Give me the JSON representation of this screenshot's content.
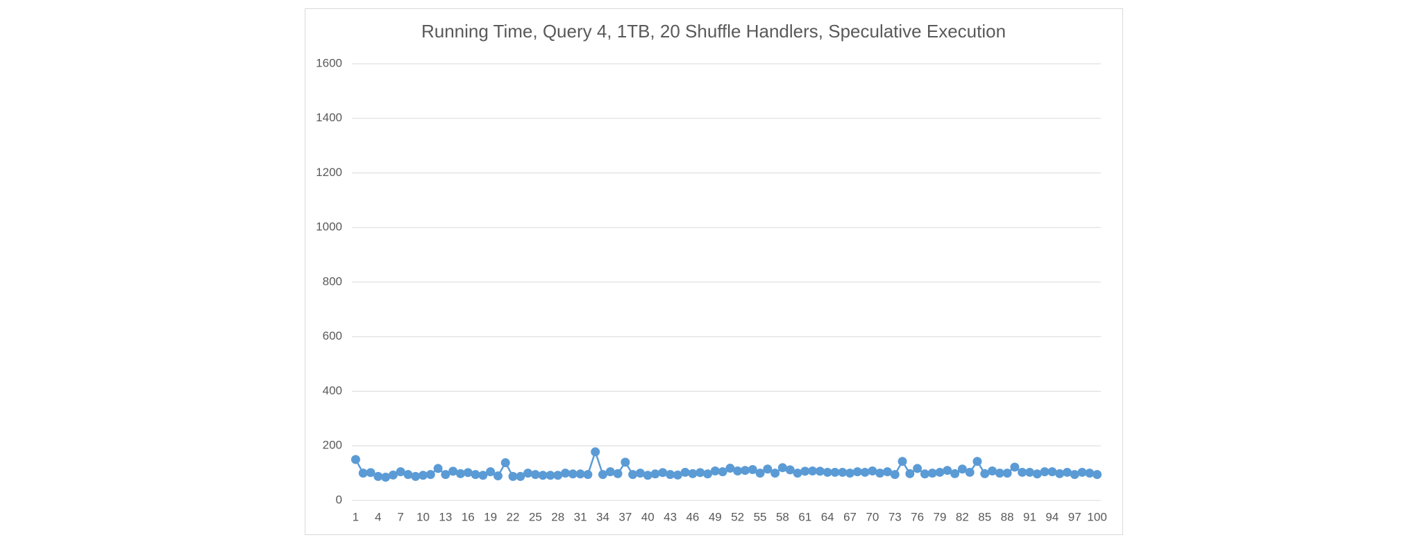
{
  "chart_data": {
    "type": "line",
    "title": "Running Time, Query 4, 1TB, 20 Shuffle Handlers, Speculative Execution",
    "categories": [
      1,
      null,
      null,
      4,
      null,
      null,
      7,
      null,
      null,
      10,
      null,
      null,
      13,
      null,
      null,
      16,
      null,
      null,
      19,
      null,
      null,
      22,
      null,
      null,
      25,
      null,
      null,
      28,
      null,
      null,
      31,
      null,
      null,
      34,
      null,
      null,
      37,
      null,
      null,
      40,
      null,
      null,
      43,
      null,
      null,
      46,
      null,
      null,
      49,
      null,
      null,
      52,
      null,
      null,
      55,
      null,
      null,
      58,
      null,
      null,
      61,
      null,
      null,
      64,
      null,
      null,
      67,
      null,
      null,
      70,
      null,
      null,
      73,
      null,
      null,
      76,
      null,
      null,
      79,
      null,
      null,
      82,
      null,
      null,
      85,
      null,
      null,
      88,
      null,
      null,
      91,
      null,
      null,
      94,
      null,
      null,
      97,
      null,
      null,
      100
    ],
    "values": [
      150,
      100,
      102,
      88,
      85,
      93,
      105,
      95,
      88,
      92,
      95,
      117,
      95,
      107,
      98,
      102,
      95,
      92,
      105,
      90,
      138,
      88,
      88,
      100,
      95,
      92,
      92,
      92,
      100,
      97,
      97,
      95,
      178,
      95,
      105,
      98,
      140,
      95,
      100,
      92,
      97,
      102,
      95,
      93,
      103,
      98,
      102,
      97,
      108,
      105,
      118,
      108,
      110,
      113,
      100,
      115,
      100,
      120,
      112,
      100,
      107,
      108,
      107,
      103,
      103,
      103,
      100,
      105,
      103,
      108,
      100,
      105,
      95,
      143,
      98,
      117,
      97,
      100,
      103,
      110,
      98,
      115,
      103,
      143,
      98,
      108,
      100,
      100,
      122,
      103,
      103,
      97,
      105,
      105,
      98,
      103,
      95,
      103,
      100,
      95
    ],
    "color": "#5b9bd5",
    "ylim": [
      0,
      1600
    ],
    "yticks": [
      0,
      200,
      400,
      600,
      800,
      1000,
      1200,
      1400,
      1600
    ],
    "grid": true
  }
}
